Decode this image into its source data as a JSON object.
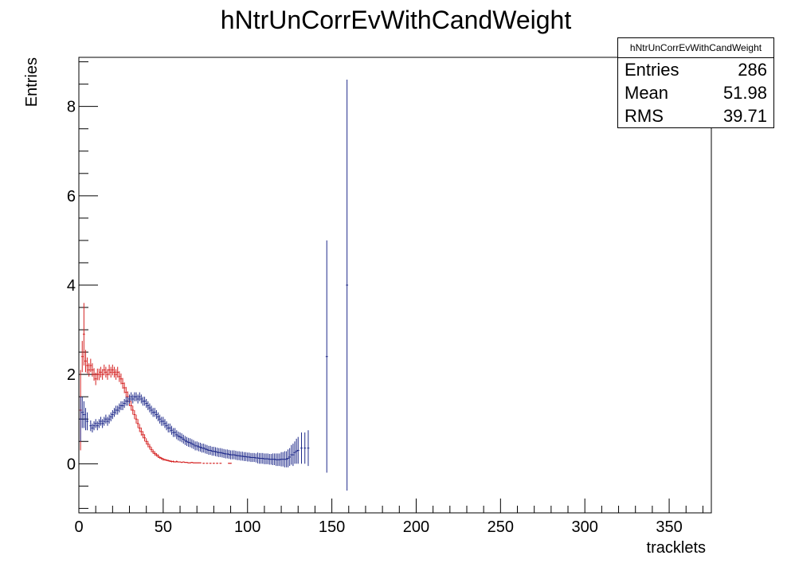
{
  "chart_data": {
    "type": "scatter",
    "title": "hNtrUnCorrEvWithCandWeight",
    "xlabel": "tracklets",
    "ylabel": "Entries",
    "xlim": [
      0,
      375
    ],
    "ylim": [
      -1.1,
      9.1
    ],
    "x_ticks": [
      0,
      50,
      100,
      150,
      200,
      250,
      300,
      350
    ],
    "y_ticks": [
      0,
      2,
      4,
      6,
      8
    ],
    "colors": {
      "red": "#d42020",
      "blue": "#1f2a8a"
    },
    "series": [
      {
        "color": "red",
        "points": [
          [
            1,
            1.2,
            0.9
          ],
          [
            2,
            2.4,
            0.35
          ],
          [
            3,
            2.9,
            0.7
          ],
          [
            4,
            2.3,
            0.25
          ],
          [
            5,
            2.2,
            0.18
          ],
          [
            6,
            2.1,
            0.15
          ],
          [
            7,
            2.2,
            0.15
          ],
          [
            8,
            2.1,
            0.15
          ],
          [
            9,
            2.0,
            0.14
          ],
          [
            10,
            1.9,
            0.14
          ],
          [
            11,
            2.0,
            0.13
          ],
          [
            12,
            2.0,
            0.13
          ],
          [
            13,
            2.05,
            0.12
          ],
          [
            14,
            2.0,
            0.12
          ],
          [
            15,
            2.1,
            0.12
          ],
          [
            16,
            2.05,
            0.12
          ],
          [
            17,
            2.0,
            0.12
          ],
          [
            18,
            2.1,
            0.12
          ],
          [
            19,
            2.05,
            0.12
          ],
          [
            20,
            2.1,
            0.12
          ],
          [
            21,
            2.05,
            0.12
          ],
          [
            22,
            2.0,
            0.12
          ],
          [
            23,
            2.05,
            0.12
          ],
          [
            24,
            1.95,
            0.12
          ],
          [
            25,
            1.9,
            0.12
          ],
          [
            26,
            1.8,
            0.12
          ],
          [
            27,
            1.7,
            0.12
          ],
          [
            28,
            1.6,
            0.12
          ],
          [
            29,
            1.5,
            0.12
          ],
          [
            30,
            1.4,
            0.11
          ],
          [
            31,
            1.3,
            0.11
          ],
          [
            32,
            1.2,
            0.1
          ],
          [
            33,
            1.1,
            0.1
          ],
          [
            34,
            1.0,
            0.1
          ],
          [
            35,
            0.9,
            0.1
          ],
          [
            36,
            0.8,
            0.09
          ],
          [
            37,
            0.72,
            0.09
          ],
          [
            38,
            0.65,
            0.08
          ],
          [
            39,
            0.58,
            0.08
          ],
          [
            40,
            0.5,
            0.07
          ],
          [
            41,
            0.44,
            0.07
          ],
          [
            42,
            0.38,
            0.06
          ],
          [
            43,
            0.32,
            0.06
          ],
          [
            44,
            0.27,
            0.05
          ],
          [
            45,
            0.23,
            0.05
          ],
          [
            46,
            0.2,
            0.04
          ],
          [
            47,
            0.17,
            0.04
          ],
          [
            48,
            0.14,
            0.03
          ],
          [
            49,
            0.12,
            0.03
          ],
          [
            50,
            0.1,
            0.03
          ],
          [
            51,
            0.09,
            0.02
          ],
          [
            52,
            0.08,
            0.02
          ],
          [
            53,
            0.07,
            0.02
          ],
          [
            54,
            0.06,
            0.02
          ],
          [
            55,
            0.05,
            0.02
          ],
          [
            56,
            0.05,
            0.02
          ],
          [
            57,
            0.04,
            0.01
          ],
          [
            58,
            0.05,
            0.02
          ],
          [
            59,
            0.04,
            0.01
          ],
          [
            60,
            0.04,
            0.01
          ],
          [
            61,
            0.03,
            0.01
          ],
          [
            62,
            0.04,
            0.01
          ],
          [
            63,
            0.03,
            0.01
          ],
          [
            64,
            0.03,
            0.01
          ],
          [
            65,
            0.02,
            0.01
          ],
          [
            66,
            0.02,
            0.01
          ],
          [
            67,
            0.03,
            0.01
          ],
          [
            68,
            0.02,
            0.01
          ],
          [
            69,
            0.02,
            0.01
          ],
          [
            70,
            0.02,
            0.01
          ],
          [
            71,
            0.02,
            0.01
          ],
          [
            72,
            0.02,
            0.01
          ],
          [
            74,
            0.01,
            0.01
          ],
          [
            76,
            0.01,
            0.01
          ],
          [
            78,
            0.01,
            0.01
          ],
          [
            80,
            0.01,
            0.01
          ],
          [
            82,
            0.01,
            0.01
          ],
          [
            84,
            0.01,
            0.01
          ],
          [
            89,
            0.01,
            0.01
          ],
          [
            90,
            0.01,
            0.01
          ]
        ]
      },
      {
        "color": "blue",
        "points": [
          [
            1,
            1.0,
            0.5
          ],
          [
            2,
            1.15,
            0.35
          ],
          [
            3,
            1.1,
            0.3
          ],
          [
            4,
            1.0,
            0.25
          ],
          [
            5,
            0.95,
            0.2
          ],
          [
            7,
            0.85,
            0.12
          ],
          [
            8,
            0.8,
            0.1
          ],
          [
            9,
            0.85,
            0.1
          ],
          [
            10,
            0.9,
            0.1
          ],
          [
            11,
            0.85,
            0.1
          ],
          [
            12,
            0.9,
            0.1
          ],
          [
            13,
            0.95,
            0.1
          ],
          [
            14,
            0.9,
            0.1
          ],
          [
            15,
            0.95,
            0.1
          ],
          [
            16,
            1.0,
            0.1
          ],
          [
            17,
            0.95,
            0.1
          ],
          [
            18,
            1.0,
            0.1
          ],
          [
            19,
            1.05,
            0.1
          ],
          [
            20,
            1.1,
            0.1
          ],
          [
            21,
            1.15,
            0.1
          ],
          [
            22,
            1.2,
            0.1
          ],
          [
            23,
            1.2,
            0.1
          ],
          [
            24,
            1.25,
            0.1
          ],
          [
            25,
            1.3,
            0.1
          ],
          [
            26,
            1.3,
            0.1
          ],
          [
            27,
            1.35,
            0.1
          ],
          [
            28,
            1.4,
            0.1
          ],
          [
            29,
            1.4,
            0.1
          ],
          [
            30,
            1.45,
            0.1
          ],
          [
            31,
            1.5,
            0.1
          ],
          [
            32,
            1.45,
            0.1
          ],
          [
            33,
            1.5,
            0.1
          ],
          [
            34,
            1.5,
            0.1
          ],
          [
            35,
            1.45,
            0.1
          ],
          [
            36,
            1.5,
            0.1
          ],
          [
            37,
            1.45,
            0.1
          ],
          [
            38,
            1.4,
            0.1
          ],
          [
            39,
            1.4,
            0.1
          ],
          [
            40,
            1.35,
            0.1
          ],
          [
            41,
            1.3,
            0.1
          ],
          [
            42,
            1.25,
            0.1
          ],
          [
            43,
            1.2,
            0.1
          ],
          [
            44,
            1.15,
            0.1
          ],
          [
            45,
            1.15,
            0.1
          ],
          [
            46,
            1.1,
            0.1
          ],
          [
            47,
            1.05,
            0.1
          ],
          [
            48,
            1.0,
            0.1
          ],
          [
            49,
            0.95,
            0.1
          ],
          [
            50,
            0.95,
            0.1
          ],
          [
            51,
            0.9,
            0.1
          ],
          [
            52,
            0.85,
            0.1
          ],
          [
            53,
            0.8,
            0.1
          ],
          [
            54,
            0.8,
            0.1
          ],
          [
            55,
            0.75,
            0.1
          ],
          [
            56,
            0.7,
            0.1
          ],
          [
            57,
            0.7,
            0.1
          ],
          [
            58,
            0.65,
            0.1
          ],
          [
            59,
            0.62,
            0.1
          ],
          [
            60,
            0.6,
            0.1
          ],
          [
            61,
            0.58,
            0.1
          ],
          [
            62,
            0.55,
            0.1
          ],
          [
            63,
            0.52,
            0.1
          ],
          [
            64,
            0.5,
            0.1
          ],
          [
            65,
            0.48,
            0.1
          ],
          [
            66,
            0.47,
            0.1
          ],
          [
            67,
            0.45,
            0.1
          ],
          [
            68,
            0.43,
            0.1
          ],
          [
            69,
            0.4,
            0.1
          ],
          [
            70,
            0.4,
            0.1
          ],
          [
            71,
            0.38,
            0.1
          ],
          [
            72,
            0.37,
            0.1
          ],
          [
            73,
            0.35,
            0.1
          ],
          [
            74,
            0.35,
            0.1
          ],
          [
            75,
            0.33,
            0.1
          ],
          [
            76,
            0.32,
            0.1
          ],
          [
            77,
            0.3,
            0.1
          ],
          [
            78,
            0.3,
            0.1
          ],
          [
            79,
            0.28,
            0.1
          ],
          [
            80,
            0.28,
            0.1
          ],
          [
            81,
            0.27,
            0.1
          ],
          [
            82,
            0.26,
            0.1
          ],
          [
            83,
            0.25,
            0.1
          ],
          [
            84,
            0.25,
            0.1
          ],
          [
            85,
            0.24,
            0.1
          ],
          [
            86,
            0.23,
            0.1
          ],
          [
            87,
            0.22,
            0.1
          ],
          [
            88,
            0.22,
            0.1
          ],
          [
            89,
            0.21,
            0.1
          ],
          [
            90,
            0.2,
            0.1
          ],
          [
            91,
            0.2,
            0.1
          ],
          [
            92,
            0.2,
            0.1
          ],
          [
            93,
            0.19,
            0.1
          ],
          [
            94,
            0.18,
            0.1
          ],
          [
            95,
            0.18,
            0.1
          ],
          [
            96,
            0.17,
            0.1
          ],
          [
            97,
            0.17,
            0.1
          ],
          [
            98,
            0.16,
            0.1
          ],
          [
            99,
            0.16,
            0.1
          ],
          [
            100,
            0.15,
            0.1
          ],
          [
            101,
            0.15,
            0.1
          ],
          [
            102,
            0.14,
            0.1
          ],
          [
            103,
            0.14,
            0.1
          ],
          [
            104,
            0.14,
            0.1
          ],
          [
            105,
            0.13,
            0.1
          ],
          [
            106,
            0.13,
            0.12
          ],
          [
            107,
            0.12,
            0.12
          ],
          [
            108,
            0.12,
            0.12
          ],
          [
            109,
            0.12,
            0.12
          ],
          [
            110,
            0.11,
            0.12
          ],
          [
            111,
            0.11,
            0.12
          ],
          [
            112,
            0.11,
            0.12
          ],
          [
            113,
            0.1,
            0.12
          ],
          [
            114,
            0.1,
            0.12
          ],
          [
            115,
            0.1,
            0.13
          ],
          [
            116,
            0.1,
            0.13
          ],
          [
            117,
            0.09,
            0.14
          ],
          [
            118,
            0.09,
            0.14
          ],
          [
            119,
            0.09,
            0.14
          ],
          [
            120,
            0.1,
            0.16
          ],
          [
            121,
            0.1,
            0.16
          ],
          [
            122,
            0.1,
            0.18
          ],
          [
            123,
            0.1,
            0.18
          ],
          [
            124,
            0.12,
            0.2
          ],
          [
            125,
            0.15,
            0.2
          ],
          [
            126,
            0.2,
            0.22
          ],
          [
            127,
            0.2,
            0.25
          ],
          [
            128,
            0.25,
            0.25
          ],
          [
            129,
            0.28,
            0.28
          ],
          [
            130,
            0.3,
            0.3
          ],
          [
            132,
            0.35,
            0.35
          ],
          [
            134,
            0.35,
            0.35
          ],
          [
            136,
            0.35,
            0.4
          ],
          [
            147,
            2.4,
            2.6
          ],
          [
            159,
            4.0,
            4.6
          ]
        ]
      }
    ]
  },
  "stats": {
    "title": "hNtrUnCorrEvWithCandWeight",
    "rows": [
      {
        "label": "Entries",
        "value": "286"
      },
      {
        "label": "Mean",
        "value": "51.98"
      },
      {
        "label": "RMS",
        "value": "39.71"
      }
    ]
  }
}
